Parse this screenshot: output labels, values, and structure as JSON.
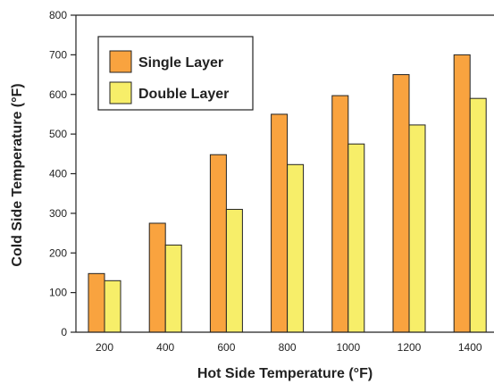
{
  "chart_data": {
    "type": "bar",
    "categories": [
      "200",
      "400",
      "600",
      "800",
      "1000",
      "1200",
      "1400"
    ],
    "series": [
      {
        "name": "Single Layer",
        "values": [
          148,
          275,
          448,
          550,
          597,
          650,
          700
        ],
        "color": "#f9a33f"
      },
      {
        "name": "Double Layer",
        "values": [
          130,
          220,
          310,
          423,
          475,
          523,
          590
        ],
        "color": "#f7ee69"
      }
    ],
    "xlabel": "Hot Side Temperature (°F)",
    "ylabel": "Cold Side Temperature (°F)",
    "ylim": [
      0,
      800
    ],
    "yticks": [
      "0",
      "100",
      "200",
      "300",
      "400",
      "500",
      "600",
      "700",
      "800"
    ],
    "grid": false,
    "legend_position": "top-left"
  }
}
